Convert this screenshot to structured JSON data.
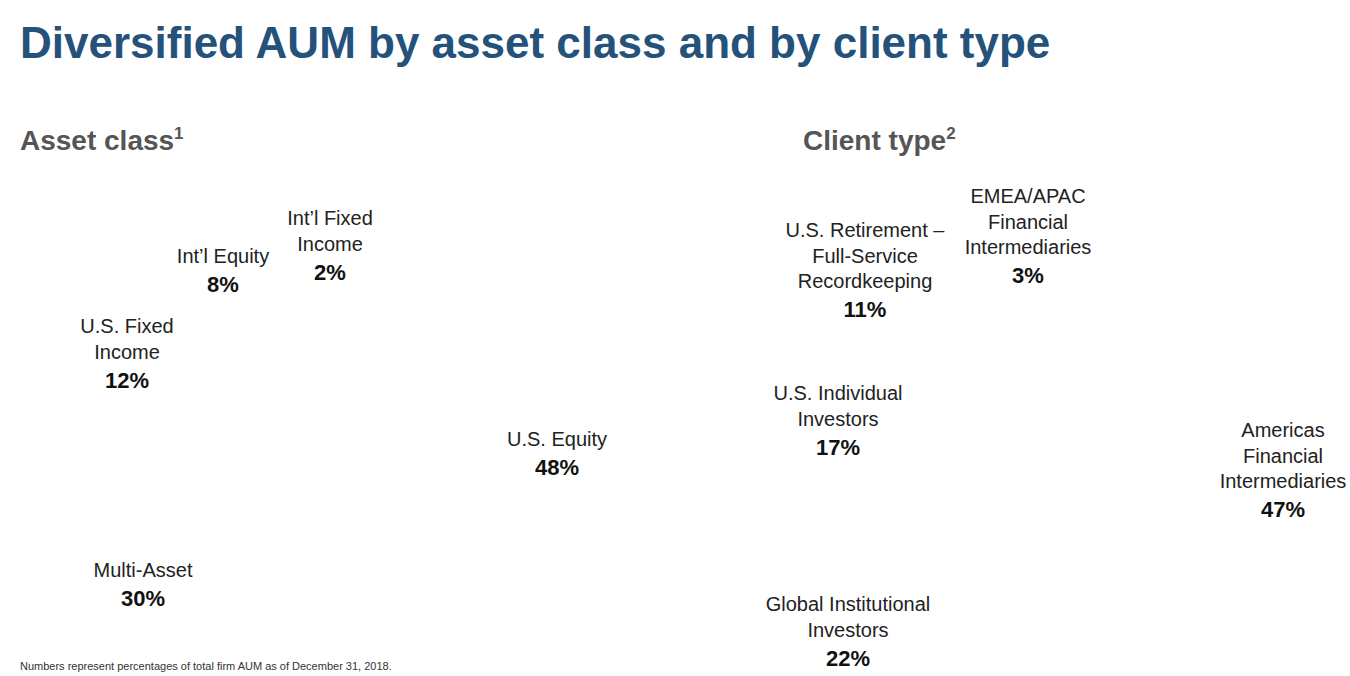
{
  "title": "Diversified AUM by asset class and by client type",
  "footnote": "Numbers represent percentages of total firm AUM as of December 31, 2018.",
  "chart_data": [
    {
      "type": "pie",
      "title": "Asset class",
      "title_marker": "1",
      "categories": [
        "U.S. Equity",
        "Multi-Asset",
        "U.S. Fixed\nIncome",
        "Int’l Equity",
        "Int’l Fixed\nIncome"
      ],
      "values": [
        48,
        30,
        12,
        8,
        2
      ],
      "value_labels": [
        "48%",
        "30%",
        "12%",
        "8%",
        "2%"
      ],
      "colors": [
        "#1f3a4f",
        "#1f4a6b",
        "#5a7f96",
        "#8da6b8",
        "#c3d1db"
      ],
      "data_labels": true
    },
    {
      "type": "pie",
      "title": "Client type",
      "title_marker": "2",
      "categories": [
        "Americas\nFinancial\nIntermediaries",
        "Global Institutional\nInvestors",
        "U.S. Individual\nInvestors",
        "U.S. Retirement –\nFull-Service\nRecordkeeping",
        "EMEA/APAC\nFinancial\nIntermediaries"
      ],
      "values": [
        47,
        22,
        17,
        11,
        3
      ],
      "value_labels": [
        "47%",
        "22%",
        "17%",
        "11%",
        "3%"
      ],
      "colors": [
        "#52a9c6",
        "#56bedb",
        "#7bd2e8",
        "#aae3f0",
        "#d0eff7"
      ],
      "data_labels": true
    }
  ]
}
